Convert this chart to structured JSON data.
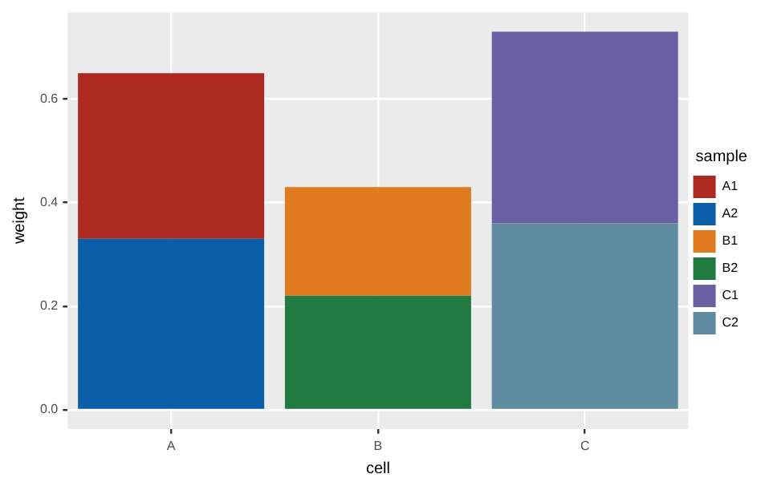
{
  "chart_data": {
    "type": "bar",
    "stacked": true,
    "xlabel": "cell",
    "ylabel": "weight",
    "legend_title": "sample",
    "legend": "right",
    "grid": true,
    "categories": [
      "A",
      "B",
      "C"
    ],
    "ylim": [
      -0.037,
      0.767
    ],
    "yticks": [
      {
        "value": 0,
        "label": "0.0"
      },
      {
        "value": 0.2,
        "label": "0.2"
      },
      {
        "value": 0.4,
        "label": "0.4"
      },
      {
        "value": 0.6,
        "label": "0.6"
      }
    ],
    "series": [
      {
        "name": "A2",
        "color": "#0b5ea8",
        "values": [
          0.33,
          null,
          null
        ]
      },
      {
        "name": "A1",
        "color": "#ad2a20",
        "values": [
          0.32,
          null,
          null
        ]
      },
      {
        "name": "B2",
        "color": "#217a3f",
        "values": [
          null,
          0.22,
          null
        ]
      },
      {
        "name": "B1",
        "color": "#e07b1f",
        "values": [
          null,
          0.21,
          null
        ]
      },
      {
        "name": "C2",
        "color": "#5f8ba0",
        "values": [
          null,
          null,
          0.36
        ]
      },
      {
        "name": "C1",
        "color": "#6a5fa3",
        "values": [
          null,
          null,
          0.37
        ]
      }
    ]
  }
}
